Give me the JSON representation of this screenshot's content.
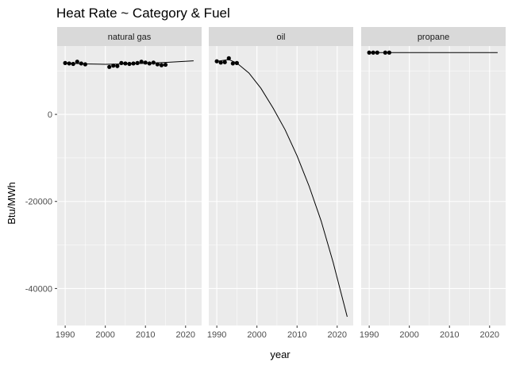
{
  "chart_data": {
    "type": "scatter",
    "title": "Heat Rate ~ Category & Fuel",
    "xlabel": "year",
    "ylabel": "Btu/MWh",
    "xlim": [
      1988,
      2024
    ],
    "ylim": [
      -48500,
      15700
    ],
    "x_ticks": [
      1990,
      2000,
      2010,
      2020
    ],
    "y_ticks": [
      0,
      -20000,
      -40000
    ],
    "y_tick_labels": [
      "0",
      "-20000",
      "-40000"
    ],
    "grid": true,
    "legend": "none",
    "colors": {
      "panel_bg": "#ebebeb",
      "grid": "#ffffff",
      "strip_bg": "#d9d9d9",
      "points": "#000000",
      "line": "#000000"
    },
    "facets": [
      {
        "label": "natural gas",
        "points": [
          {
            "x": 1990,
            "y": 11800
          },
          {
            "x": 1991,
            "y": 11700
          },
          {
            "x": 1992,
            "y": 11600
          },
          {
            "x": 1993,
            "y": 12100
          },
          {
            "x": 1994,
            "y": 11700
          },
          {
            "x": 1995,
            "y": 11500
          },
          {
            "x": 2001,
            "y": 10900
          },
          {
            "x": 2002,
            "y": 11200
          },
          {
            "x": 2003,
            "y": 11100
          },
          {
            "x": 2004,
            "y": 11800
          },
          {
            "x": 2005,
            "y": 11700
          },
          {
            "x": 2006,
            "y": 11600
          },
          {
            "x": 2007,
            "y": 11700
          },
          {
            "x": 2008,
            "y": 11800
          },
          {
            "x": 2009,
            "y": 12100
          },
          {
            "x": 2010,
            "y": 11900
          },
          {
            "x": 2011,
            "y": 11700
          },
          {
            "x": 2012,
            "y": 11900
          },
          {
            "x": 2013,
            "y": 11500
          },
          {
            "x": 2014,
            "y": 11300
          },
          {
            "x": 2015,
            "y": 11400
          }
        ],
        "fit": [
          {
            "x": 1990,
            "y": 11800
          },
          {
            "x": 1995,
            "y": 11600
          },
          {
            "x": 2000,
            "y": 11500
          },
          {
            "x": 2005,
            "y": 11600
          },
          {
            "x": 2010,
            "y": 11750
          },
          {
            "x": 2015,
            "y": 11950
          },
          {
            "x": 2022,
            "y": 12300
          }
        ]
      },
      {
        "label": "oil",
        "points": [
          {
            "x": 1990,
            "y": 12200
          },
          {
            "x": 1991,
            "y": 11900
          },
          {
            "x": 1992,
            "y": 12000
          },
          {
            "x": 1993,
            "y": 12900
          },
          {
            "x": 1994,
            "y": 11700
          },
          {
            "x": 1995,
            "y": 11800
          }
        ],
        "fit": [
          {
            "x": 1990,
            "y": 12200
          },
          {
            "x": 1993,
            "y": 12600
          },
          {
            "x": 1995,
            "y": 11800
          },
          {
            "x": 1998,
            "y": 9500
          },
          {
            "x": 2001,
            "y": 6000
          },
          {
            "x": 2004,
            "y": 1500
          },
          {
            "x": 2007,
            "y": -3500
          },
          {
            "x": 2010,
            "y": -9500
          },
          {
            "x": 2013,
            "y": -16500
          },
          {
            "x": 2016,
            "y": -24500
          },
          {
            "x": 2019,
            "y": -34000
          },
          {
            "x": 2022.5,
            "y": -46500
          }
        ]
      },
      {
        "label": "propane",
        "points": [
          {
            "x": 1990,
            "y": 14200
          },
          {
            "x": 1991,
            "y": 14200
          },
          {
            "x": 1992,
            "y": 14200
          },
          {
            "x": 1994,
            "y": 14200
          },
          {
            "x": 1995,
            "y": 14200
          }
        ],
        "fit": [
          {
            "x": 1990,
            "y": 14200
          },
          {
            "x": 2022,
            "y": 14200
          }
        ]
      }
    ]
  }
}
